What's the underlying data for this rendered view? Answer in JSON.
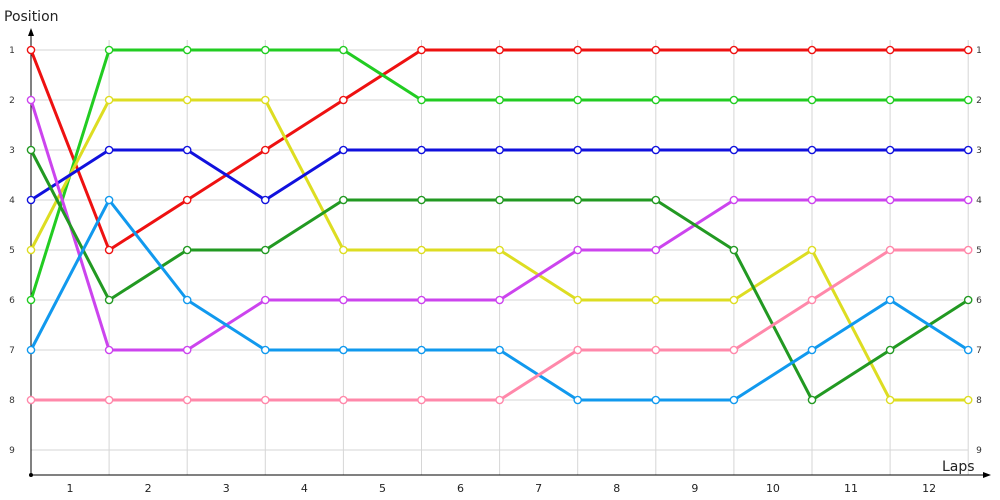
{
  "chart_data": {
    "type": "line",
    "ylabel": "Position",
    "xlabel": "Laps",
    "y_ticks": [
      "1",
      "2",
      "3",
      "4",
      "5",
      "6",
      "7",
      "8",
      "9"
    ],
    "x_ticks": [
      "1",
      "2",
      "3",
      "4",
      "5",
      "6",
      "7",
      "8",
      "9",
      "10",
      "11",
      "12"
    ],
    "ylim": [
      1,
      9
    ],
    "y_inverted": true,
    "grid": true,
    "series": [
      {
        "color": "#ee1111",
        "values": [
          1,
          5,
          4,
          3,
          2,
          1,
          1,
          1,
          1,
          1,
          1,
          1,
          1
        ]
      },
      {
        "color": "#22cc22",
        "values": [
          6,
          1,
          1,
          1,
          1,
          2,
          2,
          2,
          2,
          2,
          2,
          2,
          2
        ]
      },
      {
        "color": "#dddd22",
        "values": [
          5,
          2,
          2,
          2,
          5,
          5,
          5,
          6,
          6,
          6,
          5,
          8,
          8
        ]
      },
      {
        "color": "#1111dd",
        "values": [
          4,
          3,
          3,
          4,
          3,
          3,
          3,
          3,
          3,
          3,
          3,
          3,
          3
        ]
      },
      {
        "color": "#cc44ee",
        "values": [
          2,
          7,
          7,
          6,
          6,
          6,
          6,
          5,
          5,
          4,
          4,
          4,
          4
        ]
      },
      {
        "color": "#229922",
        "values": [
          3,
          6,
          5,
          5,
          4,
          4,
          4,
          4,
          4,
          5,
          8,
          7,
          6
        ]
      },
      {
        "color": "#1199ee",
        "values": [
          7,
          4,
          6,
          7,
          7,
          7,
          7,
          8,
          8,
          8,
          7,
          6,
          7
        ]
      },
      {
        "color": "#ff88aa",
        "values": [
          8,
          8,
          8,
          8,
          8,
          8,
          8,
          7,
          7,
          7,
          6,
          5,
          5
        ]
      }
    ]
  }
}
